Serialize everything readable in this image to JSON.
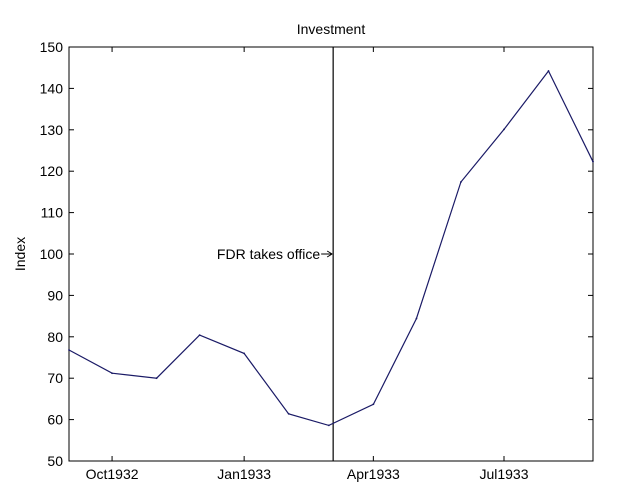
{
  "chart_data": {
    "type": "line",
    "title": "Investment",
    "xlabel": "",
    "ylabel": "Index",
    "ylim": [
      50,
      150
    ],
    "xlim": [
      "1932-09-01",
      "1933-09-01"
    ],
    "yticks": [
      50,
      60,
      70,
      80,
      90,
      100,
      110,
      120,
      130,
      140,
      150
    ],
    "xticks": [
      {
        "date": "1932-10-01",
        "label": "Oct1932"
      },
      {
        "date": "1933-01-01",
        "label": "Jan1933"
      },
      {
        "date": "1933-04-01",
        "label": "Apr1933"
      },
      {
        "date": "1933-07-01",
        "label": "Jul1933"
      }
    ],
    "grid": false,
    "series": [
      {
        "color": "#1a1a66",
        "points": [
          {
            "x": "1932-09-01",
            "y": 76.8
          },
          {
            "x": "1932-10-01",
            "y": 71.2
          },
          {
            "x": "1932-11-01",
            "y": 70.0
          },
          {
            "x": "1932-12-01",
            "y": 80.4
          },
          {
            "x": "1933-01-01",
            "y": 76.0
          },
          {
            "x": "1933-02-01",
            "y": 61.4
          },
          {
            "x": "1933-03-01",
            "y": 58.6
          },
          {
            "x": "1933-04-01",
            "y": 63.7
          },
          {
            "x": "1933-05-01",
            "y": 84.4
          },
          {
            "x": "1933-06-01",
            "y": 117.4
          },
          {
            "x": "1933-07-01",
            "y": 130.1
          },
          {
            "x": "1933-08-01",
            "y": 144.2
          },
          {
            "x": "1933-09-01",
            "y": 122.3
          }
        ]
      }
    ],
    "annotations": [
      {
        "text": "FDR takes office",
        "x": "1933-03-04",
        "y": 100
      }
    ],
    "vline": {
      "x": "1933-03-04",
      "color": "#000000"
    }
  }
}
